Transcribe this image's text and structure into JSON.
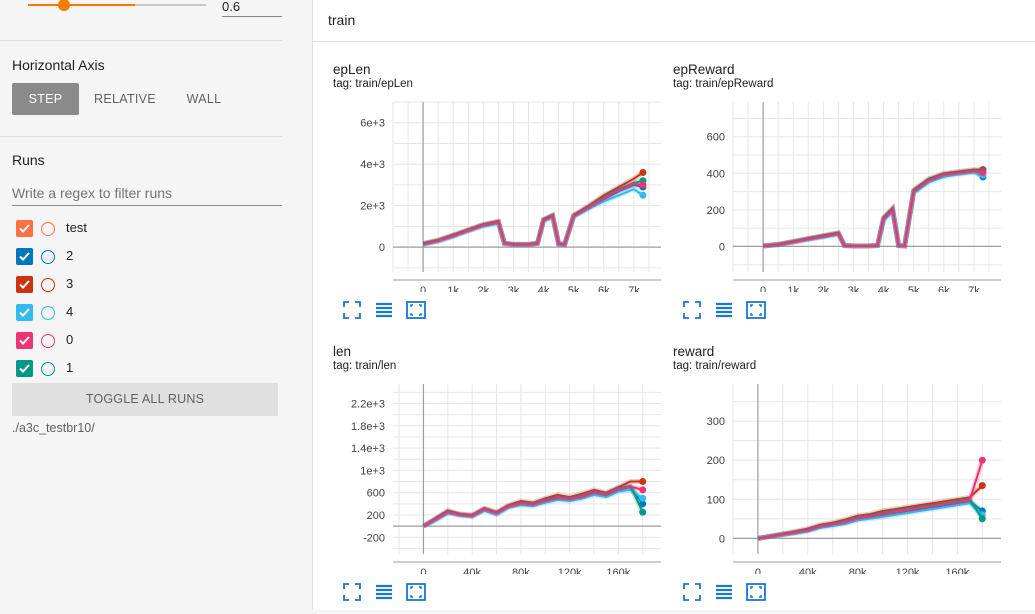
{
  "smoothing": {
    "value": "0.6",
    "fraction": 0.6
  },
  "horizontal_axis": {
    "title": "Horizontal Axis",
    "options": [
      "STEP",
      "RELATIVE",
      "WALL"
    ],
    "selected": "STEP"
  },
  "runs": {
    "title": "Runs",
    "filter_placeholder": "Write a regex to filter runs",
    "items": [
      {
        "label": "test",
        "color": "#ff7043",
        "checked": true
      },
      {
        "label": "2",
        "color": "#0077bb",
        "checked": true
      },
      {
        "label": "3",
        "color": "#cc3311",
        "checked": true
      },
      {
        "label": "4",
        "color": "#33bbee",
        "checked": true
      },
      {
        "label": "0",
        "color": "#ee3377",
        "checked": true
      },
      {
        "label": "1",
        "color": "#009988",
        "checked": true
      }
    ],
    "toggle_all_label": "TOGGLE ALL RUNS",
    "logdir": "./a3c_testbr10/"
  },
  "main": {
    "group_title": "train",
    "icons": [
      "fullscreen-icon",
      "data-table-icon",
      "fit-domain-icon"
    ]
  },
  "chart_data": [
    {
      "type": "line",
      "title": "epLen",
      "tag": "tag: train/epLen",
      "xlabel": "",
      "ylabel": "",
      "xlim": [
        -1000,
        7900
      ],
      "ylim": [
        -1200,
        7000
      ],
      "xticks": [
        0,
        1000,
        2000,
        3000,
        4000,
        5000,
        6000,
        7000
      ],
      "xtick_labels": [
        "0",
        "1k",
        "2k",
        "3k",
        "4k",
        "5k",
        "6k",
        "7k"
      ],
      "yticks": [
        0,
        2000,
        4000,
        6000
      ],
      "ytick_labels": [
        "0",
        "2e+3",
        "4e+3",
        "6e+3"
      ],
      "grid": true,
      "series": [
        {
          "color": "#0077bb",
          "x": [
            0,
            500,
            1000,
            1500,
            2000,
            2500,
            2700,
            3000,
            3500,
            3800,
            4000,
            4300,
            4500,
            4700,
            5000,
            5500,
            6000,
            6500,
            7000,
            7300
          ],
          "y": [
            150,
            300,
            550,
            800,
            1050,
            1200,
            180,
            120,
            120,
            180,
            1300,
            1500,
            150,
            120,
            1500,
            1900,
            2300,
            2700,
            3000,
            2900
          ]
        },
        {
          "color": "#cc3311",
          "x": [
            0,
            500,
            1000,
            1500,
            2000,
            2500,
            2700,
            3000,
            3500,
            3800,
            4000,
            4300,
            4500,
            4700,
            5000,
            5500,
            6000,
            6500,
            7000,
            7300
          ],
          "y": [
            180,
            350,
            600,
            850,
            1100,
            1250,
            200,
            150,
            140,
            200,
            1350,
            1550,
            170,
            140,
            1550,
            2000,
            2500,
            2900,
            3300,
            3600
          ]
        },
        {
          "color": "#33bbee",
          "x": [
            0,
            500,
            1000,
            1500,
            2000,
            2500,
            2700,
            3000,
            3500,
            3800,
            4000,
            4300,
            4500,
            4700,
            5000,
            5500,
            6000,
            6500,
            7000,
            7300
          ],
          "y": [
            120,
            280,
            500,
            780,
            1000,
            1150,
            160,
            110,
            110,
            160,
            1250,
            1450,
            140,
            110,
            1450,
            1850,
            2200,
            2500,
            2800,
            2500
          ]
        },
        {
          "color": "#009988",
          "x": [
            0,
            500,
            1000,
            1500,
            2000,
            2500,
            2700,
            3000,
            3500,
            3800,
            4000,
            4300,
            4500,
            4700,
            5000,
            5500,
            6000,
            6500,
            7000,
            7300
          ],
          "y": [
            160,
            320,
            560,
            820,
            1080,
            1220,
            190,
            130,
            130,
            190,
            1320,
            1520,
            160,
            130,
            1520,
            1950,
            2400,
            2800,
            3100,
            3200
          ]
        },
        {
          "color": "#ee3377",
          "x": [
            0,
            500,
            1000,
            1500,
            2000,
            2500,
            2700,
            3000,
            3500,
            3800,
            4000,
            4300,
            4500,
            4700,
            5000,
            5500,
            6000,
            6500,
            7000,
            7300
          ],
          "y": [
            140,
            310,
            540,
            800,
            1060,
            1200,
            170,
            120,
            120,
            170,
            1300,
            1500,
            150,
            120,
            1500,
            1920,
            2350,
            2750,
            3050,
            3000
          ]
        }
      ]
    },
    {
      "type": "line",
      "title": "epReward",
      "tag": "tag: train/epReward",
      "xlabel": "",
      "ylabel": "",
      "xlim": [
        -1000,
        7900
      ],
      "ylim": [
        -140,
        790
      ],
      "xticks": [
        0,
        1000,
        2000,
        3000,
        4000,
        5000,
        6000,
        7000
      ],
      "xtick_labels": [
        "0",
        "1k",
        "2k",
        "3k",
        "4k",
        "5k",
        "6k",
        "7k"
      ],
      "yticks": [
        0,
        200,
        400,
        600
      ],
      "ytick_labels": [
        "0",
        "200",
        "400",
        "600"
      ],
      "grid": true,
      "series": [
        {
          "color": "#0077bb",
          "x": [
            0,
            500,
            1000,
            1500,
            2000,
            2500,
            2700,
            3000,
            3500,
            3800,
            4000,
            4300,
            4500,
            4700,
            5000,
            5500,
            6000,
            6500,
            7000,
            7300
          ],
          "y": [
            2,
            10,
            25,
            40,
            55,
            70,
            5,
            2,
            2,
            5,
            150,
            200,
            5,
            2,
            300,
            360,
            390,
            400,
            410,
            380
          ]
        },
        {
          "color": "#cc3311",
          "x": [
            0,
            500,
            1000,
            1500,
            2000,
            2500,
            2700,
            3000,
            3500,
            3800,
            4000,
            4300,
            4500,
            4700,
            5000,
            5500,
            6000,
            6500,
            7000,
            7300
          ],
          "y": [
            3,
            12,
            28,
            45,
            60,
            75,
            6,
            3,
            3,
            6,
            160,
            210,
            6,
            3,
            310,
            370,
            400,
            410,
            420,
            420
          ]
        },
        {
          "color": "#33bbee",
          "x": [
            0,
            500,
            1000,
            1500,
            2000,
            2500,
            2700,
            3000,
            3500,
            3800,
            4000,
            4300,
            4500,
            4700,
            5000,
            5500,
            6000,
            6500,
            7000,
            7300
          ],
          "y": [
            2,
            8,
            22,
            38,
            50,
            65,
            4,
            2,
            2,
            4,
            140,
            190,
            4,
            2,
            290,
            350,
            380,
            395,
            405,
            390
          ]
        },
        {
          "color": "#009988",
          "x": [
            0,
            500,
            1000,
            1500,
            2000,
            2500,
            2700,
            3000,
            3500,
            3800,
            4000,
            4300,
            4500,
            4700,
            5000,
            5500,
            6000,
            6500,
            7000,
            7300
          ],
          "y": [
            3,
            11,
            26,
            42,
            57,
            72,
            5,
            2,
            2,
            5,
            155,
            205,
            5,
            2,
            305,
            365,
            395,
            405,
            415,
            410
          ]
        },
        {
          "color": "#ee3377",
          "x": [
            0,
            500,
            1000,
            1500,
            2000,
            2500,
            2700,
            3000,
            3500,
            3800,
            4000,
            4300,
            4500,
            4700,
            5000,
            5500,
            6000,
            6500,
            7000,
            7300
          ],
          "y": [
            2,
            10,
            24,
            40,
            55,
            70,
            5,
            2,
            2,
            5,
            150,
            200,
            5,
            2,
            300,
            360,
            392,
            402,
            412,
            405
          ]
        }
      ]
    },
    {
      "type": "line",
      "title": "len",
      "tag": "tag: train/len",
      "xlabel": "",
      "ylabel": "",
      "xlim": [
        -25000,
        195000
      ],
      "ylim": [
        -500,
        2550
      ],
      "xticks": [
        0,
        40000,
        80000,
        120000,
        160000
      ],
      "xtick_labels": [
        "0",
        "40k",
        "80k",
        "120k",
        "160k"
      ],
      "yticks": [
        -200,
        200,
        600,
        1000,
        1400,
        1800,
        2200
      ],
      "ytick_labels": [
        "-200",
        "200",
        "600",
        "1e+3",
        "1.4e+3",
        "1.8e+3",
        "2.2e+3"
      ],
      "grid": true,
      "series": [
        {
          "color": "#0077bb",
          "x": [
            0,
            10000,
            20000,
            30000,
            40000,
            50000,
            60000,
            70000,
            80000,
            90000,
            100000,
            110000,
            120000,
            130000,
            140000,
            150000,
            160000,
            170000,
            180000
          ],
          "y": [
            0,
            120,
            250,
            200,
            180,
            300,
            220,
            350,
            400,
            380,
            450,
            500,
            480,
            520,
            600,
            550,
            650,
            700,
            400
          ]
        },
        {
          "color": "#cc3311",
          "x": [
            0,
            10000,
            20000,
            30000,
            40000,
            50000,
            60000,
            70000,
            80000,
            90000,
            100000,
            110000,
            120000,
            130000,
            140000,
            150000,
            160000,
            170000,
            180000
          ],
          "y": [
            0,
            140,
            280,
            220,
            200,
            320,
            250,
            380,
            450,
            420,
            500,
            560,
            520,
            580,
            650,
            600,
            700,
            800,
            800
          ]
        },
        {
          "color": "#33bbee",
          "x": [
            0,
            10000,
            20000,
            30000,
            40000,
            50000,
            60000,
            70000,
            80000,
            90000,
            100000,
            110000,
            120000,
            130000,
            140000,
            150000,
            160000,
            170000,
            180000
          ],
          "y": [
            0,
            100,
            230,
            190,
            170,
            280,
            210,
            330,
            380,
            360,
            420,
            470,
            450,
            490,
            560,
            520,
            620,
            650,
            500
          ]
        },
        {
          "color": "#009988",
          "x": [
            0,
            10000,
            20000,
            30000,
            40000,
            50000,
            60000,
            70000,
            80000,
            90000,
            100000,
            110000,
            120000,
            130000,
            140000,
            150000,
            160000,
            170000,
            180000
          ],
          "y": [
            0,
            130,
            260,
            210,
            190,
            310,
            240,
            360,
            420,
            400,
            470,
            520,
            500,
            540,
            620,
            580,
            680,
            720,
            250
          ]
        },
        {
          "color": "#ee3377",
          "x": [
            0,
            10000,
            20000,
            30000,
            40000,
            50000,
            60000,
            70000,
            80000,
            90000,
            100000,
            110000,
            120000,
            130000,
            140000,
            150000,
            160000,
            170000,
            180000
          ],
          "y": [
            0,
            125,
            255,
            205,
            185,
            305,
            235,
            355,
            410,
            390,
            460,
            510,
            490,
            530,
            610,
            570,
            670,
            710,
            650
          ]
        }
      ]
    },
    {
      "type": "line",
      "title": "reward",
      "tag": "tag: train/reward",
      "xlabel": "",
      "ylabel": "",
      "xlim": [
        -20000,
        195000
      ],
      "ylim": [
        -40,
        395
      ],
      "xticks": [
        0,
        40000,
        80000,
        120000,
        160000
      ],
      "xtick_labels": [
        "0",
        "40k",
        "80k",
        "120k",
        "160k"
      ],
      "yticks": [
        0,
        100,
        200,
        300
      ],
      "ytick_labels": [
        "0",
        "100",
        "200",
        "300"
      ],
      "grid": true,
      "series": [
        {
          "color": "#0077bb",
          "x": [
            0,
            10000,
            20000,
            30000,
            40000,
            50000,
            60000,
            70000,
            80000,
            90000,
            100000,
            110000,
            120000,
            130000,
            140000,
            150000,
            160000,
            170000,
            180000
          ],
          "y": [
            0,
            5,
            10,
            15,
            20,
            30,
            35,
            40,
            50,
            55,
            60,
            65,
            70,
            75,
            80,
            85,
            90,
            95,
            70
          ]
        },
        {
          "color": "#cc3311",
          "x": [
            0,
            10000,
            20000,
            30000,
            40000,
            50000,
            60000,
            70000,
            80000,
            90000,
            100000,
            110000,
            120000,
            130000,
            140000,
            150000,
            160000,
            170000,
            180000
          ],
          "y": [
            0,
            6,
            12,
            18,
            25,
            35,
            40,
            48,
            58,
            62,
            70,
            75,
            80,
            85,
            90,
            95,
            100,
            105,
            135
          ]
        },
        {
          "color": "#33bbee",
          "x": [
            0,
            10000,
            20000,
            30000,
            40000,
            50000,
            60000,
            70000,
            80000,
            90000,
            100000,
            110000,
            120000,
            130000,
            140000,
            150000,
            160000,
            170000,
            180000
          ],
          "y": [
            0,
            4,
            9,
            13,
            18,
            27,
            32,
            37,
            46,
            50,
            55,
            60,
            65,
            70,
            75,
            80,
            85,
            90,
            60
          ]
        },
        {
          "color": "#009988",
          "x": [
            0,
            10000,
            20000,
            30000,
            40000,
            50000,
            60000,
            70000,
            80000,
            90000,
            100000,
            110000,
            120000,
            130000,
            140000,
            150000,
            160000,
            170000,
            180000
          ],
          "y": [
            0,
            5,
            11,
            16,
            22,
            32,
            37,
            44,
            54,
            58,
            65,
            70,
            75,
            80,
            85,
            90,
            95,
            100,
            50
          ]
        },
        {
          "color": "#ee3377",
          "x": [
            0,
            10000,
            20000,
            30000,
            40000,
            50000,
            60000,
            70000,
            80000,
            90000,
            100000,
            110000,
            120000,
            130000,
            140000,
            150000,
            160000,
            170000,
            180000
          ],
          "y": [
            0,
            5,
            10,
            15,
            21,
            31,
            36,
            42,
            52,
            56,
            62,
            68,
            72,
            78,
            82,
            88,
            92,
            98,
            200
          ]
        }
      ]
    }
  ]
}
